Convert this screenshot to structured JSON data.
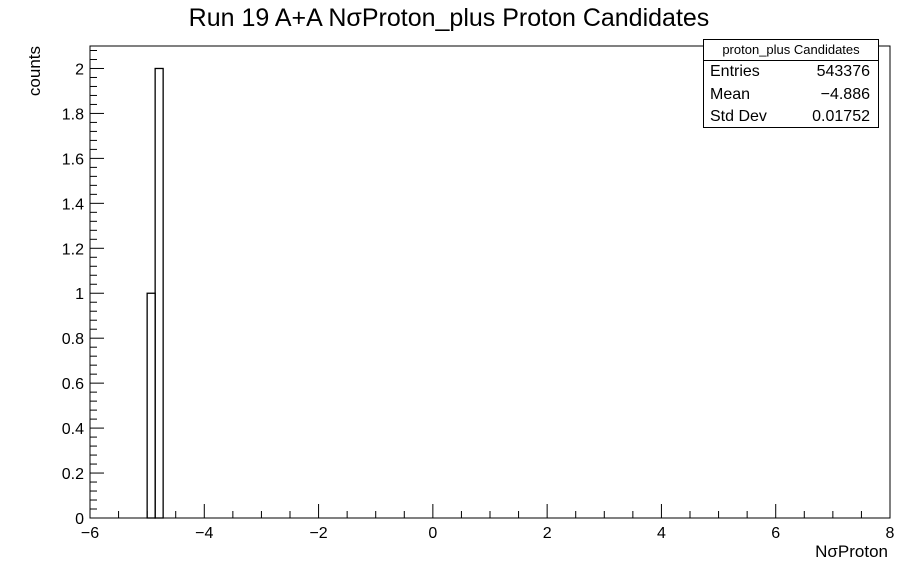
{
  "chart_data": {
    "type": "bar",
    "title": "Run 19 A+A NσProton_plus Proton Candidates",
    "xlabel": "NσProton",
    "ylabel": "counts",
    "xlim": [
      -6,
      8
    ],
    "ylim": [
      0,
      2.1
    ],
    "x_ticks": [
      "−6",
      "−4",
      "−2",
      "0",
      "2",
      "4",
      "6",
      "8"
    ],
    "y_ticks": [
      "0",
      "0.2",
      "0.4",
      "0.6",
      "0.8",
      "1",
      "1.2",
      "1.4",
      "1.6",
      "1.8",
      "2"
    ],
    "bins": [
      {
        "x_low": -5.0,
        "x_high": -4.86,
        "value": 1
      },
      {
        "x_low": -4.86,
        "x_high": -4.72,
        "value": 2
      }
    ],
    "legend": "top-right",
    "grid": false,
    "stats_box": {
      "title": "proton_plus Candidates",
      "rows": [
        {
          "label": "Entries",
          "value": "543376"
        },
        {
          "label": "Mean",
          "value": "−4.886"
        },
        {
          "label": "Std Dev",
          "value": "0.01752"
        }
      ]
    }
  }
}
